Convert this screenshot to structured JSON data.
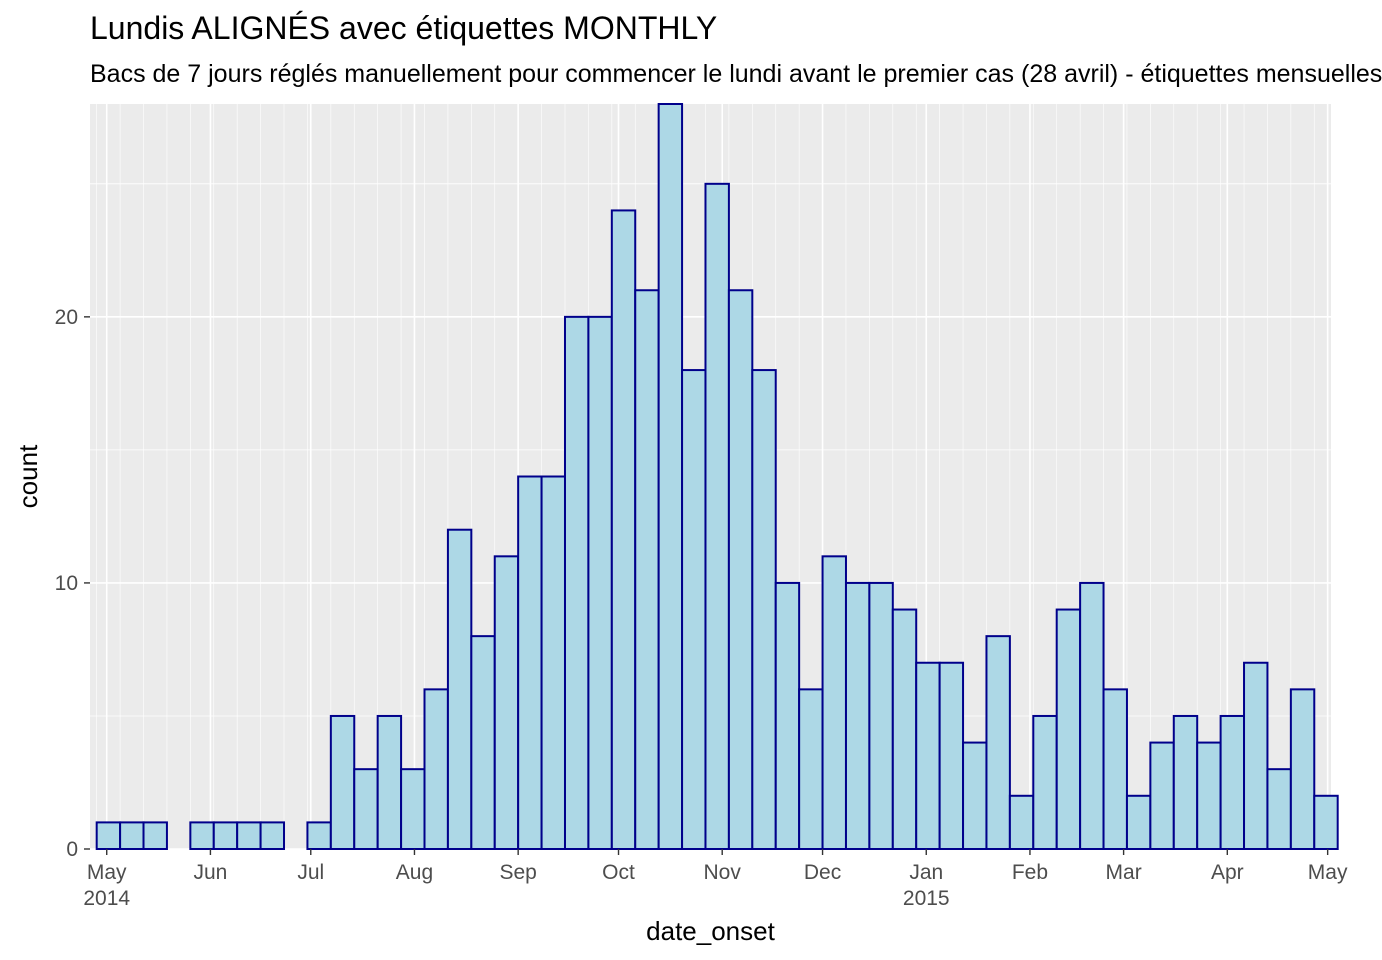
{
  "chart_data": {
    "type": "bar",
    "title": "Lundis ALIGNÉS avec étiquettes MONTHLY",
    "subtitle": "Bacs de 7 jours réglés manuellement pour commencer le lundi avant le premier cas (28 avril) - étiquettes mensuelles",
    "xlabel": "date_onset",
    "ylabel": "count",
    "bin_width_days": 7,
    "bin_start_dates": [
      "2014-04-28",
      "2014-05-05",
      "2014-05-12",
      "2014-05-19",
      "2014-05-26",
      "2014-06-02",
      "2014-06-09",
      "2014-06-16",
      "2014-06-23",
      "2014-06-30",
      "2014-07-07",
      "2014-07-14",
      "2014-07-21",
      "2014-07-28",
      "2014-08-04",
      "2014-08-11",
      "2014-08-18",
      "2014-08-25",
      "2014-09-01",
      "2014-09-08",
      "2014-09-15",
      "2014-09-22",
      "2014-09-29",
      "2014-10-06",
      "2014-10-13",
      "2014-10-20",
      "2014-10-27",
      "2014-11-03",
      "2014-11-10",
      "2014-11-17",
      "2014-11-24",
      "2014-12-01",
      "2014-12-08",
      "2014-12-15",
      "2014-12-22",
      "2014-12-29",
      "2015-01-05",
      "2015-01-12",
      "2015-01-19",
      "2015-01-26",
      "2015-02-02",
      "2015-02-09",
      "2015-02-16",
      "2015-02-23",
      "2015-03-02",
      "2015-03-09",
      "2015-03-16",
      "2015-03-23",
      "2015-03-30",
      "2015-04-06",
      "2015-04-13",
      "2015-04-20",
      "2015-04-27"
    ],
    "values": [
      1,
      1,
      1,
      0,
      1,
      1,
      1,
      1,
      0,
      1,
      5,
      3,
      5,
      3,
      6,
      12,
      8,
      11,
      14,
      14,
      20,
      20,
      24,
      21,
      28,
      18,
      25,
      21,
      18,
      10,
      6,
      11,
      10,
      10,
      9,
      7,
      7,
      4,
      8,
      2,
      5,
      9,
      10,
      6,
      2,
      4,
      5,
      4,
      5,
      7,
      3,
      6,
      2
    ],
    "x_range": [
      "2014-04-26",
      "2015-05-02"
    ],
    "ylim": [
      0,
      28
    ],
    "y_ticks": [
      0,
      10,
      20
    ],
    "x_ticks": [
      {
        "date": "2014-05-01",
        "label": "May",
        "sublabel": "2014"
      },
      {
        "date": "2014-06-01",
        "label": "Jun",
        "sublabel": ""
      },
      {
        "date": "2014-07-01",
        "label": "Jul",
        "sublabel": ""
      },
      {
        "date": "2014-08-01",
        "label": "Aug",
        "sublabel": ""
      },
      {
        "date": "2014-09-01",
        "label": "Sep",
        "sublabel": ""
      },
      {
        "date": "2014-10-01",
        "label": "Oct",
        "sublabel": ""
      },
      {
        "date": "2014-11-01",
        "label": "Nov",
        "sublabel": ""
      },
      {
        "date": "2014-12-01",
        "label": "Dec",
        "sublabel": ""
      },
      {
        "date": "2015-01-01",
        "label": "Jan",
        "sublabel": "2015"
      },
      {
        "date": "2015-02-01",
        "label": "Feb",
        "sublabel": ""
      },
      {
        "date": "2015-03-01",
        "label": "Mar",
        "sublabel": ""
      },
      {
        "date": "2015-04-01",
        "label": "Apr",
        "sublabel": ""
      },
      {
        "date": "2015-05-01",
        "label": "May",
        "sublabel": ""
      }
    ],
    "grid": true,
    "colors": {
      "bar_fill": "#ADD8E6",
      "bar_outline": "#00008B",
      "panel_background": "#EBEBEB",
      "grid_line": "#FFFFFF"
    }
  }
}
